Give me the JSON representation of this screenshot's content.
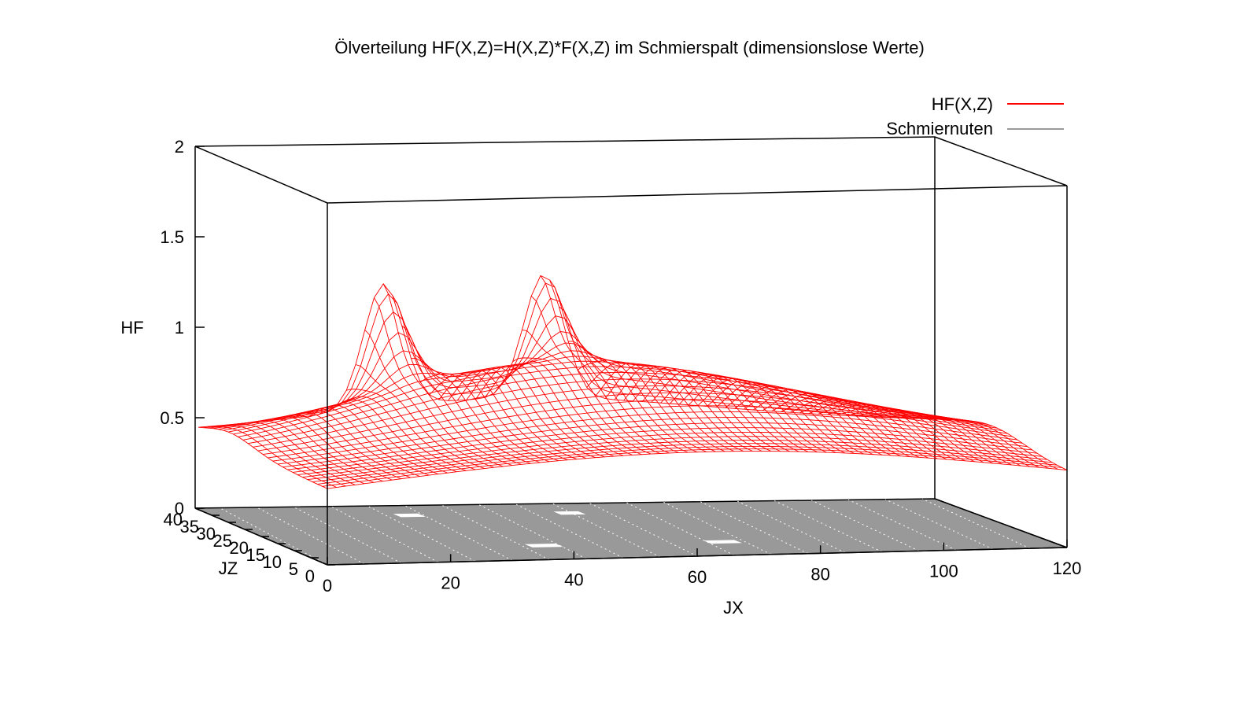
{
  "chart_data": {
    "type": "surface",
    "title": "Ölverteilung HF(X,Z)=H(X,Z)*F(X,Z) im Schmierspalt (dimensionslose Werte)",
    "xlabel": "JX",
    "ylabel": "JZ",
    "zlabel": "HF",
    "xlim": [
      0,
      120
    ],
    "ylim": [
      0,
      40
    ],
    "zlim": [
      0,
      2
    ],
    "x_ticks": [
      "0",
      "20",
      "40",
      "60",
      "80",
      "100",
      "120"
    ],
    "y_ticks": [
      "0",
      "5",
      "10",
      "15",
      "20",
      "25",
      "30",
      "35",
      "40"
    ],
    "z_ticks": [
      "0",
      "0.5",
      "1",
      "1.5",
      "2"
    ],
    "legend_position": "top-right",
    "series": [
      {
        "name": "HF(X,Z)",
        "color": "#ff0000",
        "style": "wireframe",
        "approx_range": [
          0.3,
          1.25
        ],
        "peaks": [
          {
            "jx": 30,
            "jz": 40,
            "hf": 1.25
          },
          {
            "jx": 56,
            "jz": 40,
            "hf": 1.25
          }
        ]
      },
      {
        "name": "Schmiernuten",
        "color": "#999999",
        "style": "base-plane",
        "hf": 0,
        "grooves": [
          {
            "jx_from": 29,
            "jx_to": 33,
            "jz": 33
          },
          {
            "jx_from": 55,
            "jx_to": 59,
            "jz": 33
          },
          {
            "jx_from": 38,
            "jx_to": 43,
            "jz": 10
          },
          {
            "jx_from": 67,
            "jx_to": 72,
            "jz": 10
          }
        ]
      }
    ],
    "legend": [
      {
        "label": "HF(X,Z)",
        "color": "#ff0000"
      },
      {
        "label": "Schmiernuten",
        "color": "#999999"
      }
    ]
  }
}
